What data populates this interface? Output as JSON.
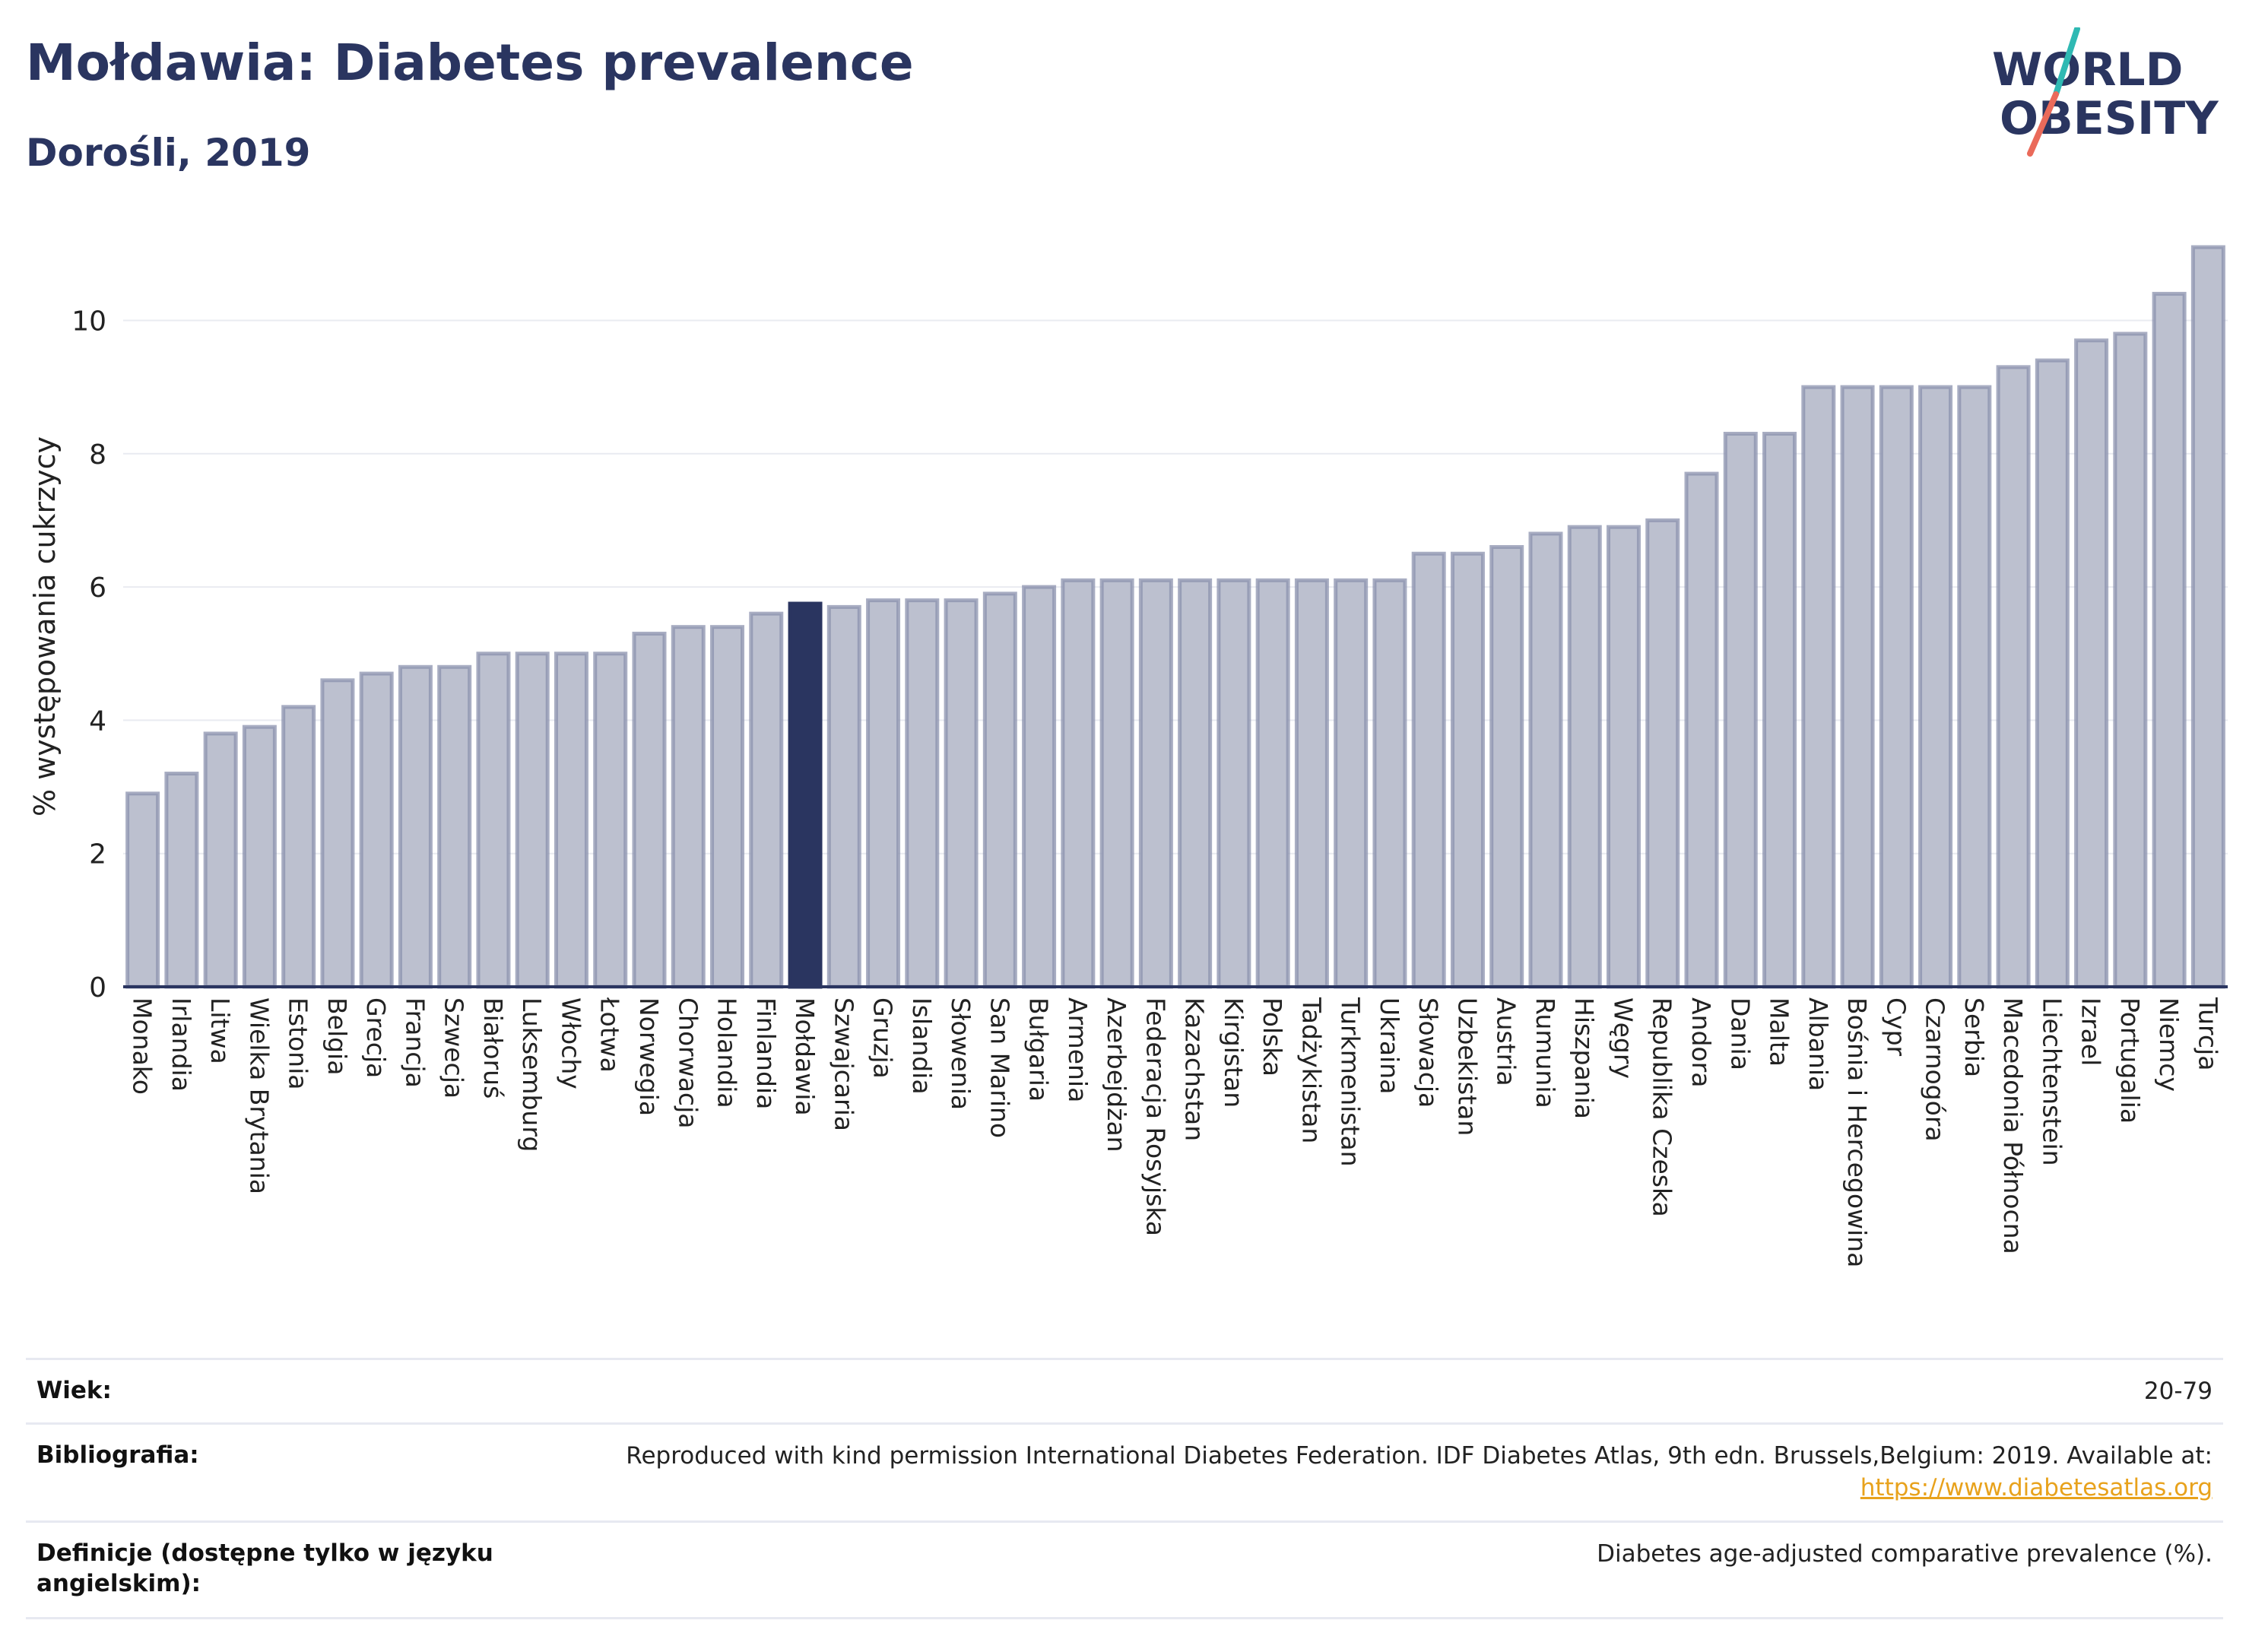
{
  "header": {
    "title": "Mołdawia: Diabetes prevalence",
    "subtitle": "Dorośli, 2019",
    "logo_line1": "WORLD",
    "logo_line2": "OBESITY"
  },
  "colors": {
    "text": "#2a3560",
    "bar": "#bcc0cf",
    "bar_border": "#8b92ae",
    "highlight": "#2a3560",
    "grid": "#e9ebf1",
    "logo_teal": "#2fb9b3",
    "logo_coral": "#ea6a5a",
    "link": "#e8a21c"
  },
  "chart_data": {
    "type": "bar",
    "ylabel": "% występowania cukrzycy",
    "ylim": [
      0,
      11.5
    ],
    "yticks": [
      "0",
      "2",
      "4",
      "6",
      "8",
      "10"
    ],
    "grid": true,
    "highlight_category": "Mołdawia",
    "categories": [
      "Monako",
      "Irlandia",
      "Litwa",
      "Wielka Brytania",
      "Estonia",
      "Belgia",
      "Grecja",
      "Francja",
      "Szwecja",
      "Białoruś",
      "Luksemburg",
      "Włochy",
      "Łotwa",
      "Norwegia",
      "Chorwacja",
      "Holandia",
      "Finlandia",
      "Mołdawia",
      "Szwajcaria",
      "Gruzja",
      "Islandia",
      "Słowenia",
      "San Marino",
      "Bułgaria",
      "Armenia",
      "Azerbejdżan",
      "Federacja Rosyjska",
      "Kazachstan",
      "Kirgistan",
      "Polska",
      "Tadżykistan",
      "Turkmenistan",
      "Ukraina",
      "Słowacja",
      "Uzbekistan",
      "Austria",
      "Rumunia",
      "Hiszpania",
      "Węgry",
      "Republika Czeska",
      "Andora",
      "Dania",
      "Malta",
      "Albania",
      "Bośnia i Hercegowina",
      "Cypr",
      "Czarnogóra",
      "Serbia",
      "Macedonia Północna",
      "Liechtenstein",
      "Izrael",
      "Portugalia",
      "Niemcy",
      "Turcja"
    ],
    "values": [
      2.9,
      3.2,
      3.8,
      3.9,
      4.2,
      4.6,
      4.7,
      4.8,
      4.8,
      5.0,
      5.0,
      5.0,
      5.0,
      5.3,
      5.4,
      5.4,
      5.6,
      5.75,
      5.7,
      5.8,
      5.8,
      5.8,
      5.9,
      6.0,
      6.1,
      6.1,
      6.1,
      6.1,
      6.1,
      6.1,
      6.1,
      6.1,
      6.1,
      6.5,
      6.5,
      6.6,
      6.8,
      6.9,
      6.9,
      7.0,
      7.7,
      8.3,
      8.3,
      9.0,
      9.0,
      9.0,
      9.0,
      9.0,
      9.3,
      9.4,
      9.7,
      9.8,
      10.4,
      11.1
    ]
  },
  "footer": {
    "age_label": "Wiek:",
    "age_value": "20-79",
    "bib_label": "Bibliografia:",
    "bib_text": "Reproduced with kind permission International Diabetes Federation. IDF Diabetes Atlas, 9th edn. Brussels,Belgium: 2019. Available at:",
    "bib_link": "https://www.diabetesatlas.org",
    "def_label": "Definicje (dostępne tylko w języku angielskim):",
    "def_text": "Diabetes age-adjusted comparative prevalence (%)."
  }
}
